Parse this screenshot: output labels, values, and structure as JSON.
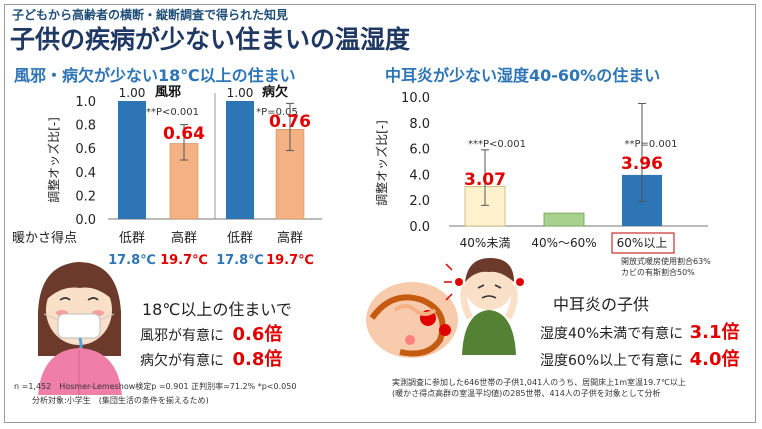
{
  "header": {
    "supertitle": "子どもから高齢者の横断・縦断調査で得られた知見",
    "title": "子供の疾病が少ない住まいの温湿度"
  },
  "left": {
    "section_title": "風邪・病欠が少ない18℃以上の住まい",
    "xlabel": "暖かさ得点",
    "temps": [
      "17.8℃",
      "19.7℃",
      "17.8℃",
      "19.7℃"
    ],
    "result_heading": "18℃以上の住まいで",
    "result_lines": [
      {
        "prefix": "風邪が有意に",
        "value": "0.6倍"
      },
      {
        "prefix": "病欠が有意に",
        "value": "0.8倍"
      }
    ],
    "footnote1": "n =1,452　Hosmer-Lemeshow検定p =0.901 正判別率=71.2% *p<0.050",
    "footnote2": "分析対象:小学生　(集団生活の条件を揃えるため)"
  },
  "right": {
    "section_title": "中耳炎が少ない湿度40-60%の住まい",
    "note_lines": [
      "開放式暖房使用割合63%",
      "カビの有斯割合50%"
    ],
    "result_heading": "中耳炎の子供",
    "result_lines": [
      {
        "prefix": "湿度40%未満で有意に",
        "value": "3.1倍"
      },
      {
        "prefix": "湿度60%以上で有意に",
        "value": "4.0倍"
      }
    ],
    "footnote1": "実測調査に参加した646世帯の子供1,041人のうち、居間床上1m室温19.7℃以上",
    "footnote2": "(暖かさ得点高群の室温平均値)の285世帯、414人の子供を対象として分析"
  },
  "colors": {
    "blue": "#2e75b6",
    "orange": "#f4b183",
    "yellow": "#fff2cc",
    "green": "#a9d18e",
    "red": "#e00000"
  },
  "chart_data": [
    {
      "type": "bar",
      "ylabel": "調整オッズ比[-]",
      "xlabel": "暖かさ得点",
      "ylim": [
        0,
        1.0
      ],
      "yticks": [
        "0.0",
        "0.2",
        "0.4",
        "0.6",
        "0.8",
        "1.0"
      ],
      "groups": [
        {
          "name": "風邪",
          "sig": "***P<0.001",
          "bars": [
            {
              "label": "低群",
              "value": 1.0,
              "text": "1.00",
              "color": "blue"
            },
            {
              "label": "高群",
              "value": 0.64,
              "text": "0.64",
              "color": "orange",
              "err": [
                0.5,
                0.8
              ]
            }
          ]
        },
        {
          "name": "病欠",
          "sig": "*P=0.05",
          "bars": [
            {
              "label": "低群",
              "value": 1.0,
              "text": "1.00",
              "color": "blue"
            },
            {
              "label": "高群",
              "value": 0.76,
              "text": "0.76",
              "color": "orange",
              "err": [
                0.58,
                0.98
              ]
            }
          ]
        }
      ]
    },
    {
      "type": "bar",
      "ylabel": "調整オッズ比[-]",
      "ylim": [
        0,
        10.0
      ],
      "yticks": [
        "0.0",
        "2.0",
        "4.0",
        "6.0",
        "8.0",
        "10.0"
      ],
      "categories": [
        "40%未満",
        "40%～60%",
        "60%以上"
      ],
      "values": [
        3.07,
        1.0,
        3.96
      ],
      "value_labels": [
        "3.07",
        "",
        "3.96"
      ],
      "errors": [
        [
          1.6,
          5.9
        ],
        null,
        [
          1.9,
          9.5
        ]
      ],
      "bar_colors": [
        "yellow",
        "green",
        "blue"
      ],
      "significance": [
        {
          "index": 0,
          "text": "***P<0.001"
        },
        {
          "index": 2,
          "text": "**P=0.001"
        }
      ]
    }
  ]
}
